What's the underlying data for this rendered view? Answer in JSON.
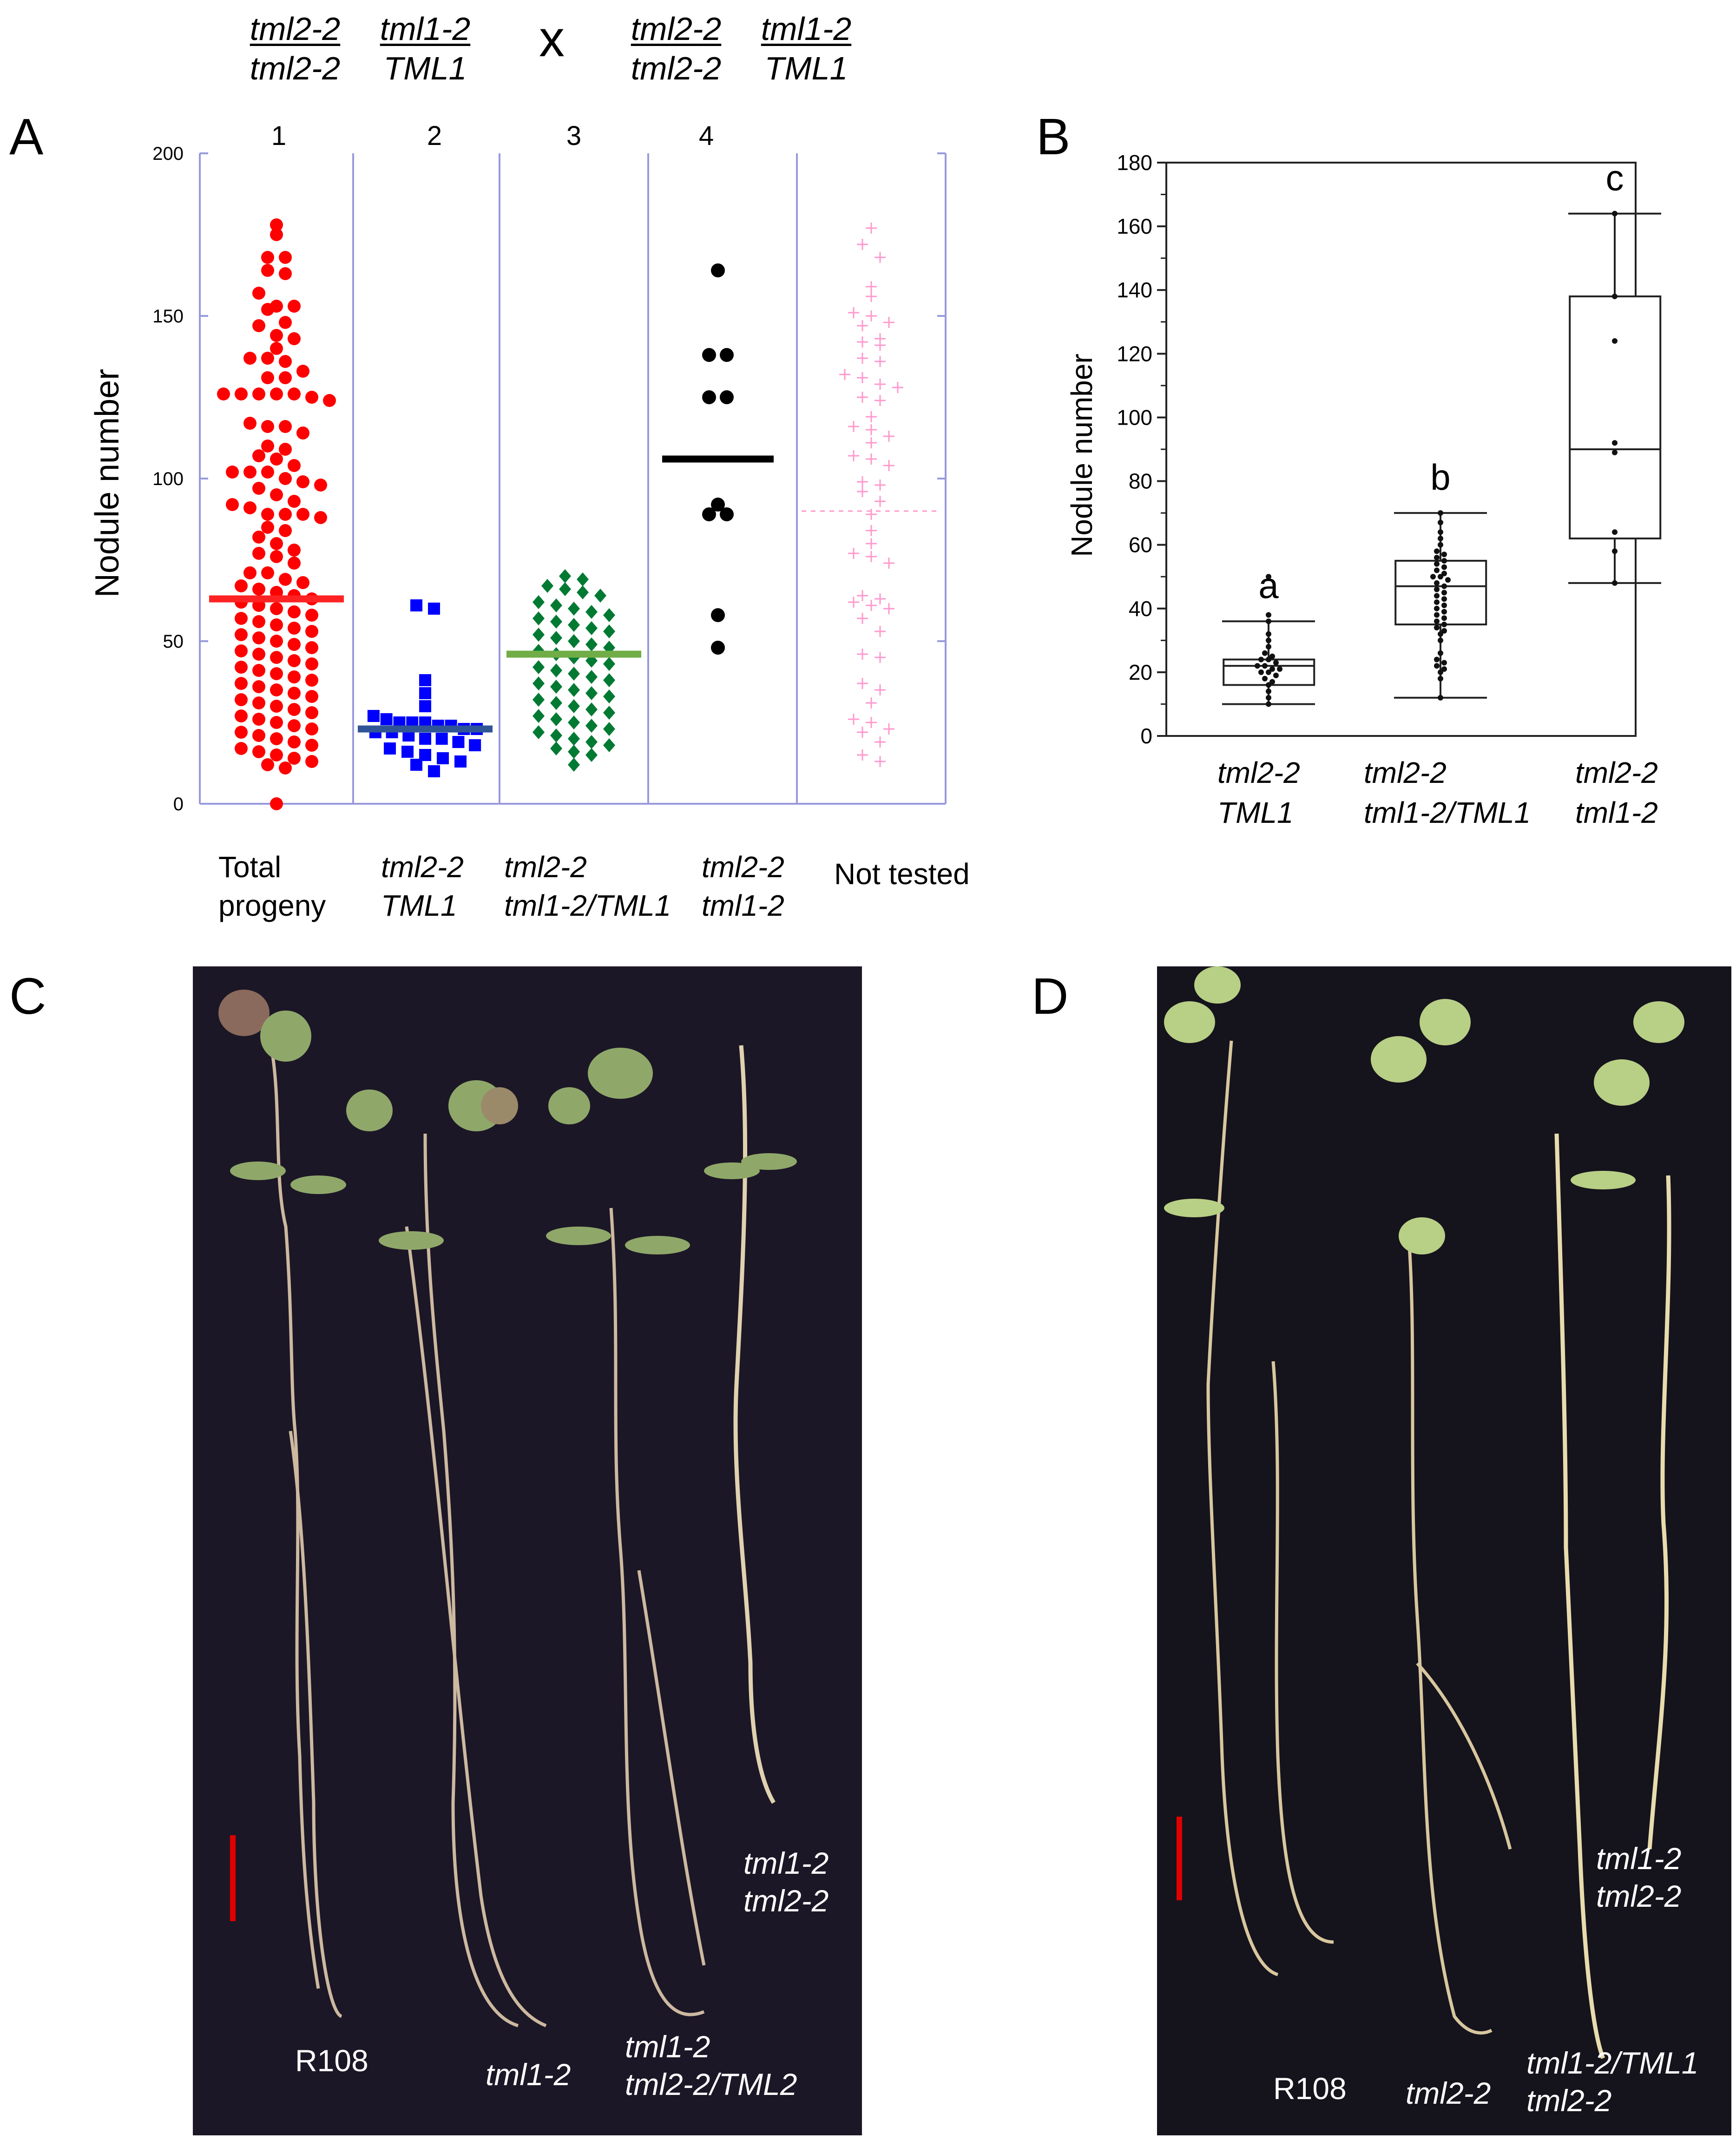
{
  "cross": {
    "parent1": {
      "top1": "tml2-2",
      "bottom1": "tml2-2",
      "top2": "tml1-2",
      "bottom2": "TML1"
    },
    "symbol": "x",
    "parent2": {
      "top1": "tml2-2",
      "bottom1": "tml2-2",
      "top2": "tml1-2",
      "bottom2": "TML1"
    }
  },
  "panels": {
    "a": "A",
    "b": "B",
    "c": "C",
    "d": "D"
  },
  "colors": {
    "total": "#ff0000",
    "tml1_wt": "#0000ff",
    "tml1_het": "#007a33",
    "tml1_mut": "#000000",
    "not_tested": "#ff99cc",
    "mean_total": "#ff2222",
    "mean_tml1_wt": "#2f5597",
    "mean_tml1_het": "#70ad47",
    "mean_tml1_mut": "#000000"
  },
  "chart_data": [
    {
      "type": "scatter",
      "ylabel": "Nodule number",
      "ylim": [
        0,
        200
      ],
      "yticks": [
        "0",
        "50",
        "100",
        "150",
        "200"
      ],
      "group_numbers": [
        "1",
        "2",
        "3",
        "4"
      ],
      "category_labels": [
        {
          "line1": "Total",
          "line2": "progeny",
          "italic": false
        },
        {
          "line1": "tml2-2",
          "line2": "TML1",
          "italic": true
        },
        {
          "line1": "tml2-2",
          "line2": "tml1-2/TML1",
          "italic": true
        },
        {
          "line1": "tml2-2",
          "line2": "tml1-2",
          "italic": true
        },
        {
          "line1": "Not tested",
          "line2": "",
          "italic": false
        }
      ],
      "series": [
        {
          "name": "Total progeny",
          "marker": "circle",
          "mean": 63,
          "values": [
            178,
            175,
            168,
            168,
            164,
            163,
            157,
            153,
            153,
            152,
            148,
            147,
            144,
            143,
            140,
            137,
            137,
            136,
            133,
            131,
            131,
            126,
            126,
            126,
            126,
            126,
            125,
            124,
            117,
            116,
            116,
            114,
            110,
            109,
            107,
            106,
            104,
            102,
            102,
            102,
            100,
            99,
            98,
            97,
            95,
            93,
            92,
            91,
            89,
            89,
            89,
            88,
            85,
            84,
            82,
            80,
            78,
            77,
            76,
            74,
            71,
            71,
            69,
            68,
            67,
            66,
            65,
            64,
            63,
            62,
            61,
            60,
            59,
            58,
            57,
            56,
            55,
            54,
            53,
            52,
            51,
            50,
            49,
            48,
            47,
            46,
            45,
            44,
            43,
            42,
            41,
            40,
            39,
            38,
            37,
            36,
            35,
            34,
            33,
            32,
            31,
            30,
            29,
            28,
            27,
            26,
            25,
            24,
            23,
            22,
            21,
            20,
            19,
            18,
            17,
            16,
            15,
            14,
            13,
            12,
            11,
            0
          ]
        },
        {
          "name": "tml2-2 TML1",
          "marker": "square",
          "mean": 23,
          "values": [
            61,
            60,
            38,
            34,
            30,
            27,
            26,
            25,
            25,
            25,
            24,
            24,
            23,
            23,
            22,
            22,
            21,
            20,
            20,
            19,
            18,
            17,
            16,
            15,
            14,
            13,
            12,
            10
          ]
        },
        {
          "name": "tml2-2 tml1-2/TML1",
          "marker": "diamond",
          "mean": 46,
          "values": [
            70,
            69,
            67,
            66,
            65,
            64,
            62,
            61,
            60,
            59,
            58,
            57,
            56,
            55,
            54,
            53,
            52,
            51,
            50,
            49,
            48,
            47,
            46,
            45,
            44,
            43,
            42,
            41,
            40,
            39,
            38,
            37,
            36,
            35,
            34,
            33,
            32,
            31,
            30,
            29,
            28,
            27,
            26,
            25,
            24,
            23,
            22,
            21,
            20,
            19,
            18,
            17,
            16,
            15,
            12
          ]
        },
        {
          "name": "tml2-2 tml1-2",
          "marker": "circle",
          "mean": 106,
          "values": [
            164,
            138,
            138,
            125,
            125,
            92,
            89,
            89,
            58,
            48
          ]
        },
        {
          "name": "Not tested",
          "marker": "plus",
          "mean": 90,
          "values": [
            177,
            172,
            168,
            159,
            156,
            151,
            150,
            148,
            147,
            143,
            142,
            141,
            137,
            136,
            132,
            131,
            129,
            128,
            125,
            124,
            119,
            116,
            115,
            113,
            111,
            107,
            106,
            104,
            99,
            98,
            96,
            93,
            89,
            84,
            80,
            77,
            76,
            74,
            64,
            63,
            62,
            61,
            60,
            57,
            53,
            46,
            45,
            37,
            35,
            31,
            26,
            25,
            23,
            22,
            19,
            15,
            13
          ]
        }
      ]
    },
    {
      "type": "box",
      "ylabel": "Nodule number",
      "ylim": [
        0,
        180
      ],
      "yticks": [
        "0",
        "20",
        "40",
        "60",
        "80",
        "100",
        "120",
        "140",
        "160",
        "180"
      ],
      "categories": [
        {
          "line1": "tml2-2",
          "line2": "TML1"
        },
        {
          "line1": "tml2-2",
          "line2": "tml1-2/TML1"
        },
        {
          "line1": "tml2-2",
          "line2": "tml1-2"
        }
      ],
      "letters": [
        "a",
        "b",
        "c"
      ],
      "boxes": [
        {
          "min": 10,
          "q1": 16,
          "median": 22,
          "q3": 24,
          "max": 36,
          "points": [
            50,
            38,
            36,
            32,
            30,
            28,
            26,
            25,
            24,
            24,
            23,
            22,
            22,
            21,
            21,
            20,
            20,
            19,
            18,
            17,
            16,
            14,
            12,
            10
          ]
        },
        {
          "min": 12,
          "q1": 35,
          "median": 47,
          "q3": 55,
          "max": 70,
          "points": [
            70,
            67,
            64,
            62,
            60,
            58,
            57,
            56,
            55,
            54,
            53,
            52,
            51,
            50,
            50,
            49,
            48,
            47,
            46,
            45,
            44,
            43,
            42,
            41,
            40,
            39,
            38,
            37,
            36,
            35,
            34,
            33,
            32,
            30,
            26,
            24,
            23,
            22,
            21,
            20,
            18,
            12
          ]
        },
        {
          "min": 48,
          "q1": 62,
          "median": 90,
          "q3": 138,
          "max": 164,
          "points": [
            164,
            138,
            124,
            92,
            89,
            64,
            58,
            48
          ]
        }
      ]
    }
  ],
  "photo_c": {
    "labels": {
      "plant1": "R108",
      "plant2": "tml1-2",
      "plant3_line1": "tml1-2",
      "plant3_line2": "tml2-2/TML2",
      "plant4_line1": "tml1-2",
      "plant4_line2": "tml2-2"
    }
  },
  "photo_d": {
    "labels": {
      "plant1": "R108",
      "plant2": "tml2-2",
      "plant3_line1": "tml1-2/TML1",
      "plant3_line2": "tml2-2",
      "plant4_line1": "tml1-2",
      "plant4_line2": "tml2-2"
    }
  }
}
